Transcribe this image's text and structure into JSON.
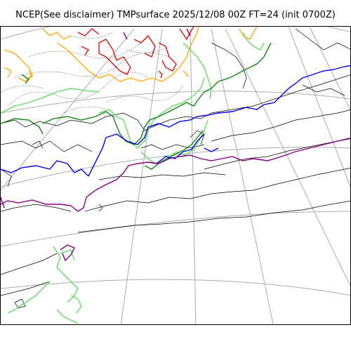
{
  "title": "NCEP(See disclaimer) TMPsurface 2025/12/08 00Z FT=24 (init 0700Z)",
  "map": {
    "projection": "polar-stereographic",
    "graticule_color": "#aaaaaa",
    "coastline_color": "#000000",
    "isotherm_colors": {
      "warm_red": "#dd1111",
      "orange": "#ffa500",
      "light_green": "#77dd77",
      "dark_green": "#118811",
      "blue": "#0000ee",
      "purple": "#880088",
      "dotted_gray": "#555555"
    }
  }
}
